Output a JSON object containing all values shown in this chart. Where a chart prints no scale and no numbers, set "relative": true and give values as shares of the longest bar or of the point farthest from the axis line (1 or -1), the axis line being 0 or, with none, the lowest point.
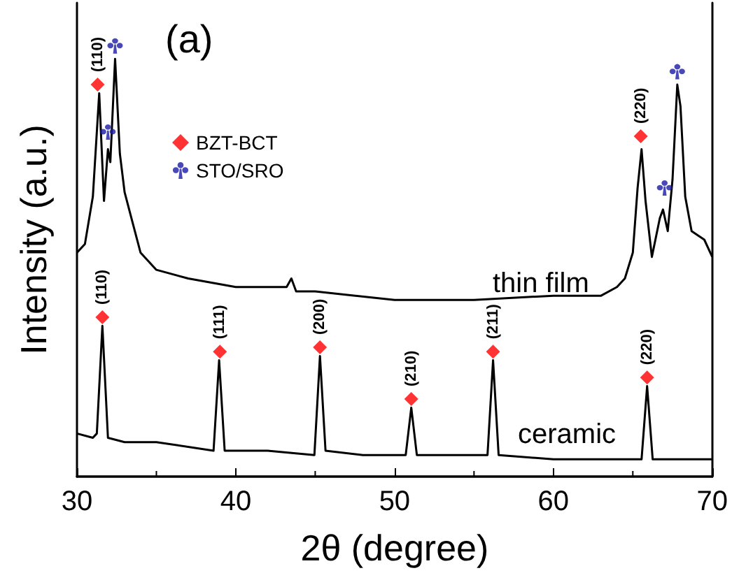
{
  "chart_data": {
    "type": "line",
    "relative": true,
    "xlabel": "2θ (degree)",
    "ylabel": "Intensity (a.u.)",
    "xlim": [
      30,
      70
    ],
    "xticks": [
      30,
      40,
      50,
      60,
      70
    ],
    "grid": false,
    "legend": "top left",
    "marker": "none",
    "series": [
      {
        "color": "#000000",
        "x": [
          30,
          30.5,
          31,
          31.4,
          31.7,
          31.95,
          32.1,
          32.4,
          32.7,
          33,
          33.5,
          34,
          35,
          37,
          40,
          43.2,
          43.5,
          43.8,
          45,
          50,
          55,
          60,
          63,
          64,
          64.5,
          65,
          65.3,
          65.55,
          65.8,
          66.2,
          66.7,
          66.9,
          67.2,
          67.5,
          67.8,
          68,
          68.3,
          68.7,
          69.5,
          70
        ],
        "values": [
          0.52,
          0.54,
          0.65,
          0.89,
          0.64,
          0.76,
          0.73,
          0.97,
          0.75,
          0.66,
          0.59,
          0.52,
          0.48,
          0.46,
          0.44,
          0.44,
          0.46,
          0.43,
          0.43,
          0.41,
          0.41,
          0.42,
          0.42,
          0.44,
          0.46,
          0.52,
          0.67,
          0.76,
          0.64,
          0.51,
          0.6,
          0.62,
          0.57,
          0.69,
          0.91,
          0.86,
          0.65,
          0.57,
          0.55,
          0.51
        ]
      },
      {
        "color": "#000000",
        "x": [
          30,
          31,
          31.25,
          31.6,
          31.95,
          33,
          35,
          38.6,
          38.95,
          39.3,
          42,
          44.95,
          45.3,
          45.65,
          48,
          50.7,
          51.05,
          51.4,
          54,
          55.85,
          56.2,
          56.55,
          60,
          65.55,
          65.9,
          66.25,
          70
        ],
        "values": [
          0.1,
          0.09,
          0.1,
          0.35,
          0.09,
          0.08,
          0.08,
          0.06,
          0.27,
          0.06,
          0.06,
          0.05,
          0.28,
          0.06,
          0.05,
          0.05,
          0.16,
          0.05,
          0.05,
          0.05,
          0.27,
          0.05,
          0.04,
          0.04,
          0.21,
          0.04,
          0.04
        ]
      },
      {
        "type": "scatter",
        "name": "BZT-BCT",
        "color": "#ff0000",
        "marker": "diamond",
        "x": [
          31.3,
          65.5,
          31.6,
          39,
          45.3,
          51.05,
          56.2,
          65.9
        ],
        "values": [
          0.91,
          0.79,
          0.37,
          0.29,
          0.3,
          0.18,
          0.29,
          0.23
        ]
      },
      {
        "type": "scatter",
        "name": "STO/SRO",
        "color": "#1a1aa6",
        "x": [
          32.4,
          31.95,
          67,
          67.8
        ],
        "values": [
          1.0,
          0.8,
          0.67,
          0.94
        ]
      }
    ],
    "annotations": [
      "(a)",
      "thin film",
      "ceramic",
      {
        "text": "(110)",
        "x": 31.3,
        "y": 0.91
      },
      {
        "text": "(220)",
        "x": 65.5,
        "y": 0.79
      },
      {
        "text": "(110)",
        "x": 31.6,
        "y": 0.37
      },
      {
        "text": "(111)",
        "x": 39,
        "y": 0.29
      },
      {
        "text": "(200)",
        "x": 45.3,
        "y": 0.3
      },
      {
        "text": "(210)",
        "x": 51.05,
        "y": 0.18
      },
      {
        "text": "(211)",
        "x": 56.2,
        "y": 0.29
      },
      {
        "text": "(220)",
        "x": 65.9,
        "y": 0.23
      }
    ]
  }
}
